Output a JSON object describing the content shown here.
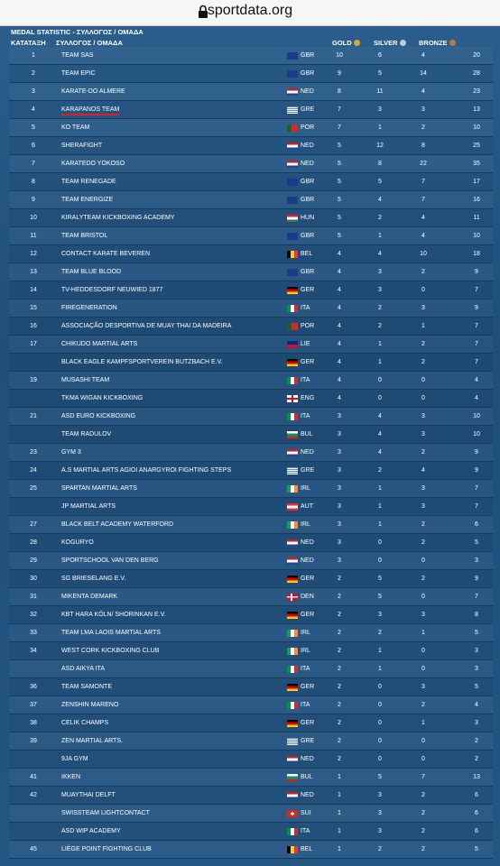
{
  "address_bar": {
    "url": "sportdata.org"
  },
  "header": {
    "title": "MEDAL STATISTIC - ΣΥΛΛΟΓΟΣ / ΟΜΑΔΑ",
    "rank_label": "ΚΑΤΑΤΑΞΗ",
    "club_label": "ΣΥΛΛΟΓΟΣ / ΟΜΑΔΑ",
    "gold_label": "GOLD",
    "silver_label": "SILVER",
    "bronze_label": "BRONZE"
  },
  "table": {
    "rows": [
      [
        1,
        "TEAM SAS",
        "GBR",
        10,
        6,
        4,
        20
      ],
      [
        2,
        "TEAM EPIC",
        "GBR",
        9,
        5,
        14,
        28
      ],
      [
        3,
        "KARATE-DO ALMERE",
        "NED",
        8,
        11,
        4,
        23
      ],
      [
        4,
        "KARAPANOS TEAM",
        "GRE",
        7,
        3,
        3,
        13
      ],
      [
        5,
        "KO TEAM",
        "POR",
        7,
        1,
        2,
        10
      ],
      [
        6,
        "SHERAFIGHT",
        "NED",
        5,
        12,
        8,
        25
      ],
      [
        7,
        "KARATEDO YOKOSO",
        "NED",
        5,
        8,
        22,
        35
      ],
      [
        8,
        "TEAM RENEGADE",
        "GBR",
        5,
        5,
        7,
        17
      ],
      [
        9,
        "TEAM ENERGIZE",
        "GBR",
        5,
        4,
        7,
        16
      ],
      [
        10,
        "KIRALYTEAM KICKBOXING ACADEMY",
        "HUN",
        5,
        2,
        4,
        11
      ],
      [
        11,
        "TEAM BRISTOL",
        "GBR",
        5,
        1,
        4,
        10
      ],
      [
        12,
        "CONTACT KARATE BEVEREN",
        "BEL",
        4,
        4,
        10,
        18
      ],
      [
        13,
        "TEAM BLUE BLOOD",
        "GBR",
        4,
        3,
        2,
        9
      ],
      [
        14,
        "TV-HEDDESDORF NEUWIED 1877",
        "GER",
        4,
        3,
        0,
        7
      ],
      [
        15,
        "FIREGENERATION",
        "ITA",
        4,
        2,
        3,
        9
      ],
      [
        16,
        "ASSOCIAÇÃO DESPORTIVA DE MUAY THAI DA MADEIRA",
        "POR",
        4,
        2,
        1,
        7
      ],
      [
        17,
        "CHIKUDO MARTIAL ARTS",
        "LIE",
        4,
        1,
        2,
        7
      ],
      [
        null,
        "BLACK EAGLE KAMPFSPORTVEREIN BUTZBACH E.V.",
        "GER",
        4,
        1,
        2,
        7
      ],
      [
        19,
        "MUSASHI TEAM",
        "ITA",
        4,
        0,
        0,
        4
      ],
      [
        null,
        "TKMA WIGAN KICKBOXING",
        "ENG",
        4,
        0,
        0,
        4
      ],
      [
        21,
        "ASD EURO KICKBOXING",
        "ITA",
        3,
        4,
        3,
        10
      ],
      [
        null,
        "TEAM RADULOV",
        "BUL",
        3,
        4,
        3,
        10
      ],
      [
        23,
        "GYM 3",
        "NED",
        3,
        4,
        2,
        9
      ],
      [
        24,
        "A.S MARTIAL ARTS AGIOI ANARGYROI FIGHTING STEPS",
        "GRE",
        3,
        2,
        4,
        9
      ],
      [
        25,
        "SPARTAN MARTIAL ARTS",
        "IRL",
        3,
        1,
        3,
        7
      ],
      [
        null,
        "JP MARTIAL ARTS",
        "AUT",
        3,
        1,
        3,
        7
      ],
      [
        27,
        "BLACK BELT ACADEMY WATERFORD",
        "IRL",
        3,
        1,
        2,
        6
      ],
      [
        28,
        "KOGURYO",
        "NED",
        3,
        0,
        2,
        5
      ],
      [
        29,
        "SPORTSCHOOL VAN DEN BERG",
        "NED",
        3,
        0,
        0,
        3
      ],
      [
        30,
        "SG BRIESELANG E.V.",
        "GER",
        2,
        5,
        2,
        9
      ],
      [
        31,
        "MIKENTA DEMARK",
        "DEN",
        2,
        5,
        0,
        7
      ],
      [
        32,
        "KBT HARA KÖLN/ SHORINKAN E.V.",
        "GER",
        2,
        3,
        3,
        8
      ],
      [
        33,
        "TEAM LMA LAOIS MARTIAL ARTS",
        "IRL",
        2,
        2,
        1,
        5
      ],
      [
        34,
        "WEST CORK KICKBOXING CLUB",
        "IRL",
        2,
        1,
        0,
        3
      ],
      [
        null,
        "ASD AIKYA ITA",
        "ITA",
        2,
        1,
        0,
        3
      ],
      [
        36,
        "TEAM SAMONTE",
        "GER",
        2,
        0,
        3,
        5
      ],
      [
        37,
        "ZENSHIN MARENO",
        "ITA",
        2,
        0,
        2,
        4
      ],
      [
        38,
        "CELIK CHAMPS",
        "GER",
        2,
        0,
        1,
        3
      ],
      [
        39,
        "ZEN MARTIAL ARTS.",
        "GRE",
        2,
        0,
        0,
        2
      ],
      [
        null,
        "9JA GYM",
        "NED",
        2,
        0,
        0,
        2
      ],
      [
        41,
        "IKKEN",
        "BUL",
        1,
        5,
        7,
        13
      ],
      [
        42,
        "MUAYTHAI DELFT",
        "NED",
        1,
        3,
        2,
        6
      ],
      [
        null,
        "SWISSTEAM LIGHTCONTACT",
        "SUI",
        1,
        3,
        2,
        6
      ],
      [
        null,
        "ASD WIP ACADEMY",
        "ITA",
        1,
        3,
        2,
        6
      ],
      [
        45,
        "LIÈGE POINT FIGHTING CLUB",
        "BEL",
        1,
        2,
        2,
        5
      ]
    ]
  }
}
